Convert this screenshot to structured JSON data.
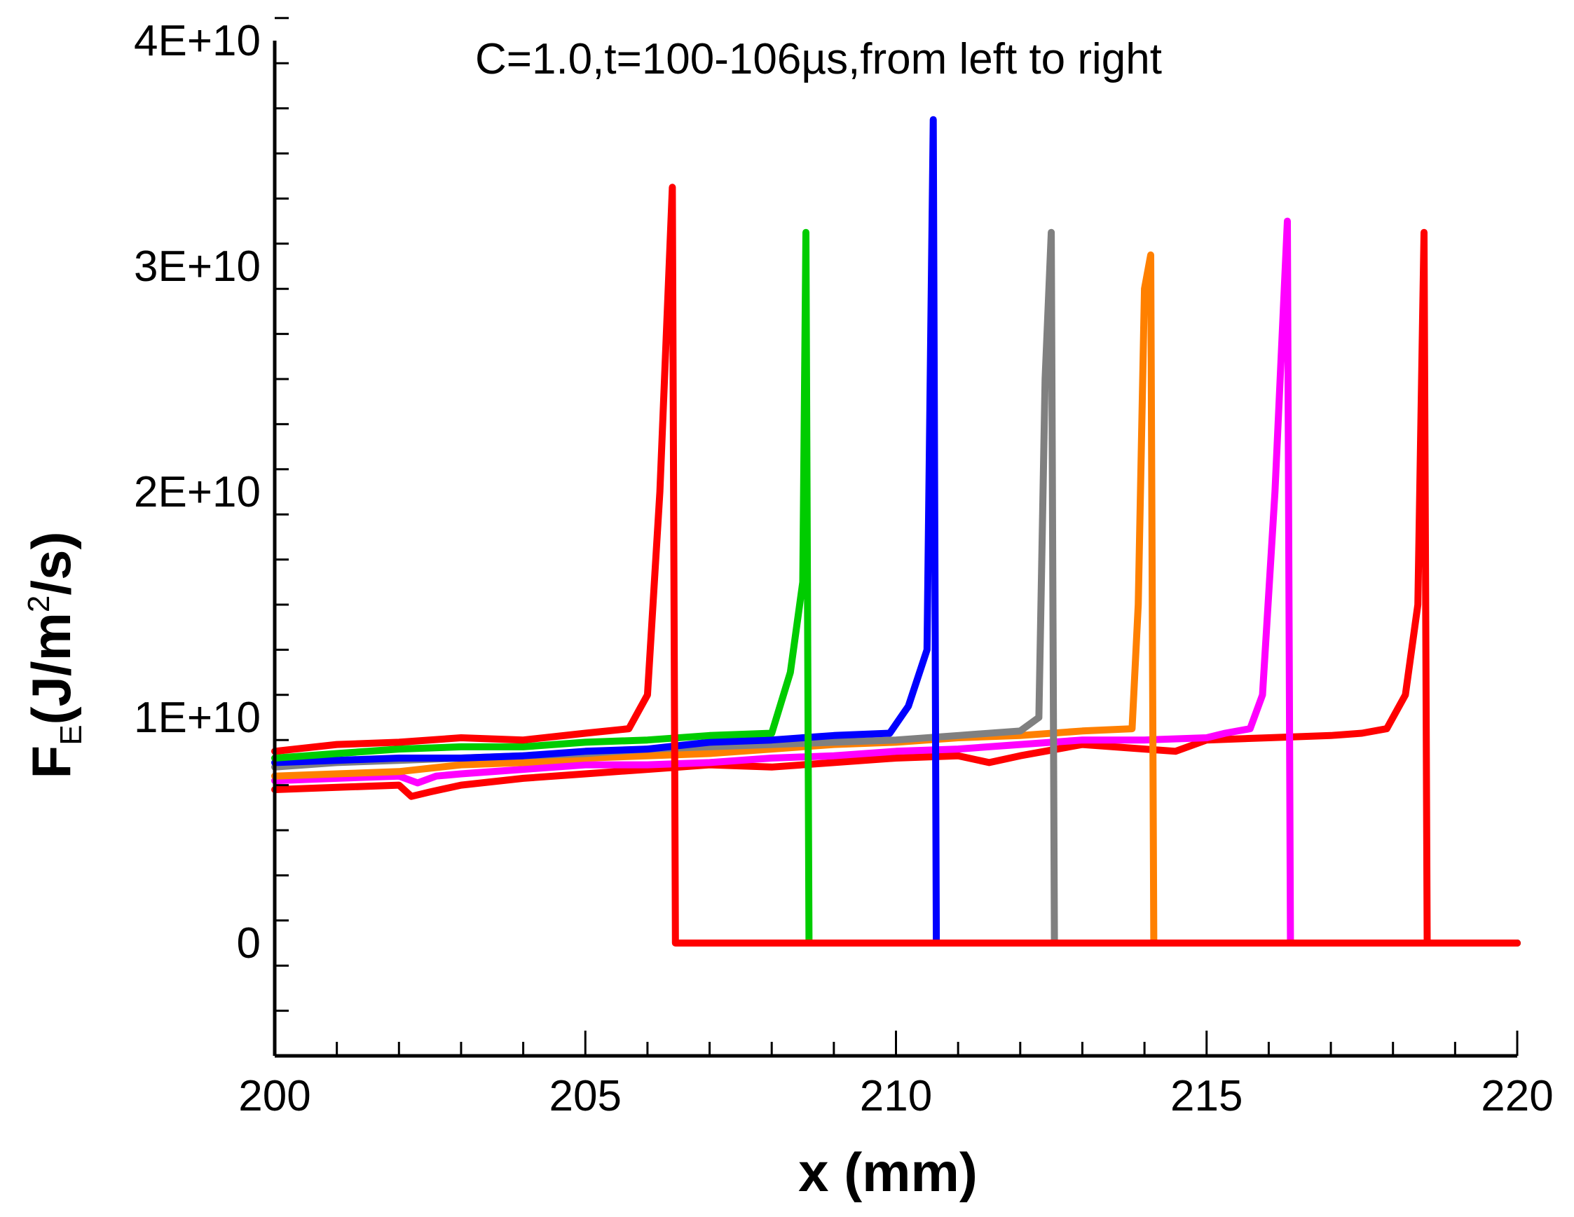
{
  "chart_data": {
    "type": "line",
    "title": "C=1.0,t=100-106µs,from left to right",
    "xlabel": "x (mm)",
    "ylabel": {
      "main": "F",
      "sub": "E",
      "unit_open": "(J/m",
      "sup": "2",
      "unit_close": "/s)"
    },
    "xlim": [
      200,
      220
    ],
    "ylim": [
      -5000000000,
      40000000000
    ],
    "x_ticks": [
      200,
      205,
      210,
      215,
      220
    ],
    "x_tick_labels": [
      "200",
      "205",
      "210",
      "215",
      "220"
    ],
    "x_minor_step": 1,
    "y_ticks": [
      0,
      10000000000,
      20000000000,
      30000000000,
      40000000000
    ],
    "y_tick_labels": [
      "0",
      "1E+10",
      "2E+10",
      "3E+10",
      "4E+10"
    ],
    "y_minor_step": 2000000000,
    "grid": false,
    "legend": "none",
    "series": [
      {
        "color": "#ff0000",
        "points": [
          [
            200,
            6800000000.0
          ],
          [
            201,
            6900000000.0
          ],
          [
            202,
            7000000000.0
          ],
          [
            202.2,
            6500000000.0
          ],
          [
            202.5,
            6700000000.0
          ],
          [
            203,
            7000000000.0
          ],
          [
            204,
            7300000000.0
          ],
          [
            205,
            7500000000.0
          ],
          [
            206,
            7700000000.0
          ],
          [
            207,
            7900000000.0
          ],
          [
            208,
            7800000000.0
          ],
          [
            209,
            8000000000.0
          ],
          [
            210,
            8200000000.0
          ],
          [
            211,
            8300000000.0
          ],
          [
            211.5,
            8000000000.0
          ],
          [
            212,
            8300000000.0
          ],
          [
            213,
            8800000000.0
          ],
          [
            213.5,
            8700000000.0
          ],
          [
            214,
            8600000000.0
          ],
          [
            214.5,
            8500000000.0
          ],
          [
            215,
            9000000000.0
          ],
          [
            216,
            9100000000.0
          ],
          [
            217,
            9200000000.0
          ],
          [
            217.5,
            9300000000.0
          ],
          [
            217.9,
            9500000000.0
          ],
          [
            218.2,
            11000000000.0
          ],
          [
            218.4,
            15000000000.0
          ],
          [
            218.5,
            31500000000.0
          ],
          [
            218.55,
            0
          ],
          [
            220,
            0
          ]
        ]
      },
      {
        "color": "#ff00ff",
        "points": [
          [
            200,
            7200000000.0
          ],
          [
            201,
            7300000000.0
          ],
          [
            202,
            7400000000.0
          ],
          [
            202.3,
            7100000000.0
          ],
          [
            202.6,
            7400000000.0
          ],
          [
            203,
            7500000000.0
          ],
          [
            204,
            7700000000.0
          ],
          [
            205,
            7900000000.0
          ],
          [
            206,
            7900000000.0
          ],
          [
            207,
            8000000000.0
          ],
          [
            208,
            8200000000.0
          ],
          [
            209,
            8300000000.0
          ],
          [
            210,
            8500000000.0
          ],
          [
            211,
            8600000000.0
          ],
          [
            212,
            8800000000.0
          ],
          [
            213,
            9000000000.0
          ],
          [
            214,
            9000000000.0
          ],
          [
            215,
            9100000000.0
          ],
          [
            215.3,
            9300000000.0
          ],
          [
            215.7,
            9500000000.0
          ],
          [
            215.9,
            11000000000.0
          ],
          [
            216.1,
            20000000000.0
          ],
          [
            216.3,
            32000000000.0
          ],
          [
            216.35,
            0
          ],
          [
            220,
            0
          ]
        ]
      },
      {
        "color": "#ff8000",
        "points": [
          [
            200,
            7400000000.0
          ],
          [
            201,
            7500000000.0
          ],
          [
            202,
            7600000000.0
          ],
          [
            203,
            7900000000.0
          ],
          [
            204,
            8000000000.0
          ],
          [
            205,
            8200000000.0
          ],
          [
            206,
            8300000000.0
          ],
          [
            207,
            8400000000.0
          ],
          [
            208,
            8600000000.0
          ],
          [
            209,
            8800000000.0
          ],
          [
            210,
            8900000000.0
          ],
          [
            211,
            9100000000.0
          ],
          [
            212,
            9200000000.0
          ],
          [
            213,
            9400000000.0
          ],
          [
            213.8,
            9500000000.0
          ],
          [
            213.9,
            15000000000.0
          ],
          [
            214.0,
            29000000000.0
          ],
          [
            214.1,
            30500000000.0
          ],
          [
            214.15,
            0
          ],
          [
            220,
            0
          ]
        ]
      },
      {
        "color": "#808080",
        "points": [
          [
            200,
            7800000000.0
          ],
          [
            201,
            8000000000.0
          ],
          [
            202,
            8100000000.0
          ],
          [
            203,
            8200000000.0
          ],
          [
            204,
            8300000000.0
          ],
          [
            205,
            8400000000.0
          ],
          [
            206,
            8600000000.0
          ],
          [
            207,
            8700000000.0
          ],
          [
            208,
            8800000000.0
          ],
          [
            209,
            8900000000.0
          ],
          [
            210,
            9000000000.0
          ],
          [
            211,
            9200000000.0
          ],
          [
            212,
            9400000000.0
          ],
          [
            212.3,
            10000000000.0
          ],
          [
            212.4,
            25000000000.0
          ],
          [
            212.5,
            31500000000.0
          ],
          [
            212.55,
            0
          ],
          [
            220,
            0
          ]
        ]
      },
      {
        "color": "#0000ff",
        "points": [
          [
            200,
            8000000000.0
          ],
          [
            201,
            8100000000.0
          ],
          [
            202,
            8200000000.0
          ],
          [
            203,
            8200000000.0
          ],
          [
            204,
            8300000000.0
          ],
          [
            205,
            8500000000.0
          ],
          [
            206,
            8600000000.0
          ],
          [
            207,
            8900000000.0
          ],
          [
            208,
            9000000000.0
          ],
          [
            209,
            9200000000.0
          ],
          [
            209.9,
            9300000000.0
          ],
          [
            210.2,
            10500000000.0
          ],
          [
            210.5,
            13000000000.0
          ],
          [
            210.6,
            36500000000.0
          ],
          [
            210.65,
            0
          ],
          [
            220,
            0
          ]
        ]
      },
      {
        "color": "#00cc00",
        "points": [
          [
            200,
            8200000000.0
          ],
          [
            201,
            8400000000.0
          ],
          [
            202,
            8600000000.0
          ],
          [
            203,
            8700000000.0
          ],
          [
            204,
            8700000000.0
          ],
          [
            205,
            8900000000.0
          ],
          [
            206,
            9000000000.0
          ],
          [
            207,
            9200000000.0
          ],
          [
            208,
            9300000000.0
          ],
          [
            208.3,
            12000000000.0
          ],
          [
            208.5,
            16000000000.0
          ],
          [
            208.55,
            31500000000.0
          ],
          [
            208.6,
            0
          ],
          [
            220,
            0
          ]
        ]
      },
      {
        "color": "#ff0000",
        "points": [
          [
            200,
            8500000000.0
          ],
          [
            201,
            8800000000.0
          ],
          [
            202,
            8900000000.0
          ],
          [
            203,
            9100000000.0
          ],
          [
            204,
            9000000000.0
          ],
          [
            205,
            9300000000.0
          ],
          [
            205.7,
            9500000000.0
          ],
          [
            206.0,
            11000000000.0
          ],
          [
            206.2,
            20000000000.0
          ],
          [
            206.4,
            33500000000.0
          ],
          [
            206.45,
            0
          ],
          [
            220,
            0
          ]
        ]
      }
    ]
  }
}
